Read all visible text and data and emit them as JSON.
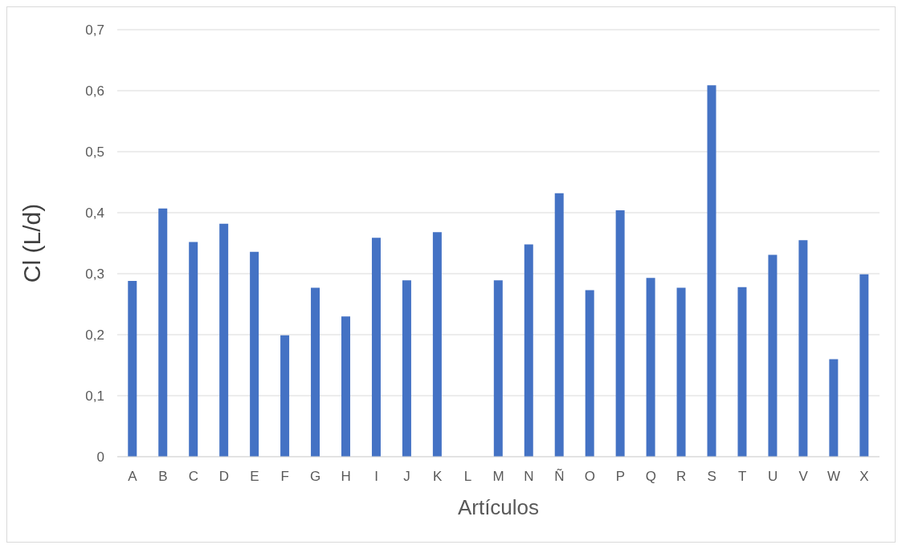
{
  "chart_data": {
    "type": "bar",
    "xlabel": "Artículos",
    "ylabel": "Cl (L/d)",
    "categories": [
      "A",
      "B",
      "C",
      "D",
      "E",
      "F",
      "G",
      "H",
      "I",
      "J",
      "K",
      "L",
      "M",
      "N",
      "Ñ",
      "O",
      "P",
      "Q",
      "R",
      "S",
      "T",
      "U",
      "V",
      "W",
      "X"
    ],
    "values": [
      0.288,
      0.407,
      0.352,
      0.382,
      0.336,
      0.199,
      0.277,
      0.23,
      0.359,
      0.289,
      0.368,
      null,
      0.289,
      0.348,
      0.432,
      0.273,
      0.404,
      0.293,
      0.277,
      0.609,
      0.278,
      0.331,
      0.355,
      0.16,
      0.299
    ],
    "color": "#4472c4",
    "ylim": [
      0,
      0.7
    ],
    "yticks": [
      {
        "value": 0,
        "label": "0"
      },
      {
        "value": 0.1,
        "label": "0,1"
      },
      {
        "value": 0.2,
        "label": "0,2"
      },
      {
        "value": 0.3,
        "label": "0,3"
      },
      {
        "value": 0.4,
        "label": "0,4"
      },
      {
        "value": 0.5,
        "label": "0,5"
      },
      {
        "value": 0.6,
        "label": "0,6"
      },
      {
        "value": 0.7,
        "label": "0,7"
      }
    ],
    "grid": "y",
    "legend": false
  }
}
